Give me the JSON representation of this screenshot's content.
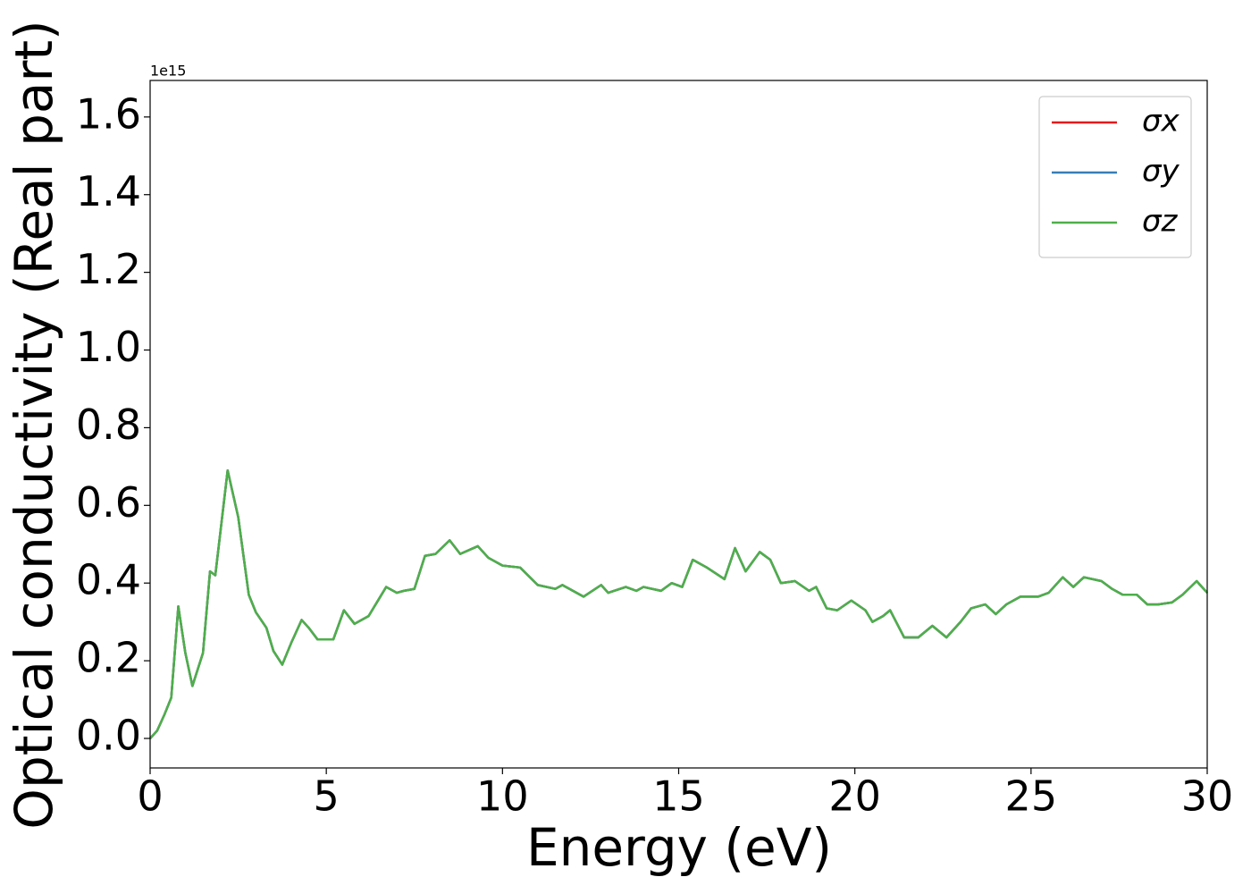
{
  "chart_data": {
    "type": "line",
    "xlabel": "Energy (eV)",
    "ylabel": "Optical conductivity (Real part)",
    "offset_label": "1e15",
    "x": [
      0,
      0.2,
      0.4,
      0.6,
      0.8,
      1.0,
      1.2,
      1.5,
      1.7,
      1.85,
      2.2,
      2.5,
      2.8,
      3.0,
      3.3,
      3.5,
      3.75,
      4.0,
      4.3,
      4.5,
      4.75,
      5.0,
      5.2,
      5.5,
      5.8,
      6.2,
      6.5,
      6.7,
      7.0,
      7.2,
      7.5,
      7.8,
      8.1,
      8.5,
      8.8,
      9.3,
      9.6,
      10.0,
      10.5,
      11.0,
      11.5,
      11.7,
      12.0,
      12.3,
      12.8,
      13.0,
      13.5,
      13.8,
      14.0,
      14.5,
      14.8,
      15.1,
      15.4,
      15.8,
      16.3,
      16.6,
      16.9,
      17.3,
      17.6,
      17.9,
      18.3,
      18.7,
      18.9,
      19.2,
      19.5,
      19.9,
      20.3,
      20.5,
      20.8,
      21.0,
      21.4,
      21.8,
      22.2,
      22.6,
      23.0,
      23.3,
      23.7,
      24.0,
      24.3,
      24.7,
      25.2,
      25.5,
      25.9,
      26.2,
      26.5,
      27.0,
      27.3,
      27.6,
      28.0,
      28.3,
      28.6,
      29.0,
      29.3,
      29.7,
      30.0
    ],
    "series": [
      {
        "name": "σx",
        "color": "#e41a1c",
        "values": [
          0,
          0.02,
          0.06,
          0.105,
          0.34,
          0.22,
          0.135,
          0.22,
          0.43,
          0.42,
          0.69,
          0.57,
          0.37,
          0.325,
          0.285,
          0.225,
          0.19,
          0.245,
          0.305,
          0.285,
          0.255,
          0.255,
          0.255,
          0.33,
          0.295,
          0.315,
          0.36,
          0.39,
          0.375,
          0.38,
          0.385,
          0.47,
          0.475,
          0.51,
          0.475,
          0.495,
          0.465,
          0.445,
          0.44,
          0.395,
          0.385,
          0.395,
          0.38,
          0.365,
          0.395,
          0.375,
          0.39,
          0.38,
          0.39,
          0.38,
          0.4,
          0.39,
          0.46,
          0.44,
          0.41,
          0.49,
          0.43,
          0.48,
          0.46,
          0.4,
          0.405,
          0.38,
          0.39,
          0.335,
          0.33,
          0.355,
          0.33,
          0.3,
          0.315,
          0.33,
          0.26,
          0.26,
          0.29,
          0.26,
          0.3,
          0.335,
          0.345,
          0.32,
          0.345,
          0.365,
          0.365,
          0.375,
          0.415,
          0.39,
          0.415,
          0.405,
          0.385,
          0.37,
          0.37,
          0.345,
          0.345,
          0.35,
          0.37,
          0.405,
          0.375
        ]
      },
      {
        "name": "σy",
        "color": "#377eb8",
        "values": [
          0,
          0.02,
          0.06,
          0.105,
          0.34,
          0.22,
          0.135,
          0.22,
          0.43,
          0.42,
          0.69,
          0.57,
          0.37,
          0.325,
          0.285,
          0.225,
          0.19,
          0.245,
          0.305,
          0.285,
          0.255,
          0.255,
          0.255,
          0.33,
          0.295,
          0.315,
          0.36,
          0.39,
          0.375,
          0.38,
          0.385,
          0.47,
          0.475,
          0.51,
          0.475,
          0.495,
          0.465,
          0.445,
          0.44,
          0.395,
          0.385,
          0.395,
          0.38,
          0.365,
          0.395,
          0.375,
          0.39,
          0.38,
          0.39,
          0.38,
          0.4,
          0.39,
          0.46,
          0.44,
          0.41,
          0.49,
          0.43,
          0.48,
          0.46,
          0.4,
          0.405,
          0.38,
          0.39,
          0.335,
          0.33,
          0.355,
          0.33,
          0.3,
          0.315,
          0.33,
          0.26,
          0.26,
          0.29,
          0.26,
          0.3,
          0.335,
          0.345,
          0.32,
          0.345,
          0.365,
          0.365,
          0.375,
          0.415,
          0.39,
          0.415,
          0.405,
          0.385,
          0.37,
          0.37,
          0.345,
          0.345,
          0.35,
          0.37,
          0.405,
          0.375
        ]
      },
      {
        "name": "σz",
        "color": "#4daf4a",
        "values": [
          0,
          0.02,
          0.06,
          0.105,
          0.34,
          0.22,
          0.135,
          0.22,
          0.43,
          0.42,
          0.69,
          0.57,
          0.37,
          0.325,
          0.285,
          0.225,
          0.19,
          0.245,
          0.305,
          0.285,
          0.255,
          0.255,
          0.255,
          0.33,
          0.295,
          0.315,
          0.36,
          0.39,
          0.375,
          0.38,
          0.385,
          0.47,
          0.475,
          0.51,
          0.475,
          0.495,
          0.465,
          0.445,
          0.44,
          0.395,
          0.385,
          0.395,
          0.38,
          0.365,
          0.395,
          0.375,
          0.39,
          0.38,
          0.39,
          0.38,
          0.4,
          0.39,
          0.46,
          0.44,
          0.41,
          0.49,
          0.43,
          0.48,
          0.46,
          0.4,
          0.405,
          0.38,
          0.39,
          0.335,
          0.33,
          0.355,
          0.33,
          0.3,
          0.315,
          0.33,
          0.26,
          0.26,
          0.29,
          0.26,
          0.3,
          0.335,
          0.345,
          0.32,
          0.345,
          0.365,
          0.365,
          0.375,
          0.415,
          0.39,
          0.415,
          0.405,
          0.385,
          0.37,
          0.37,
          0.345,
          0.345,
          0.35,
          0.37,
          0.405,
          0.375
        ]
      }
    ],
    "xlim": [
      0,
      30
    ],
    "xticks": [
      0,
      5,
      10,
      15,
      20,
      25,
      30
    ],
    "ylim": [
      -0.076,
      1.694
    ],
    "yticks": [
      {
        "value": 0,
        "label": "0.0"
      },
      0.2,
      0.4,
      0.6,
      0.8,
      {
        "value": 1,
        "label": "1.0"
      },
      1.2,
      1.4,
      1.6
    ],
    "grid": false,
    "legend": "upper right"
  }
}
